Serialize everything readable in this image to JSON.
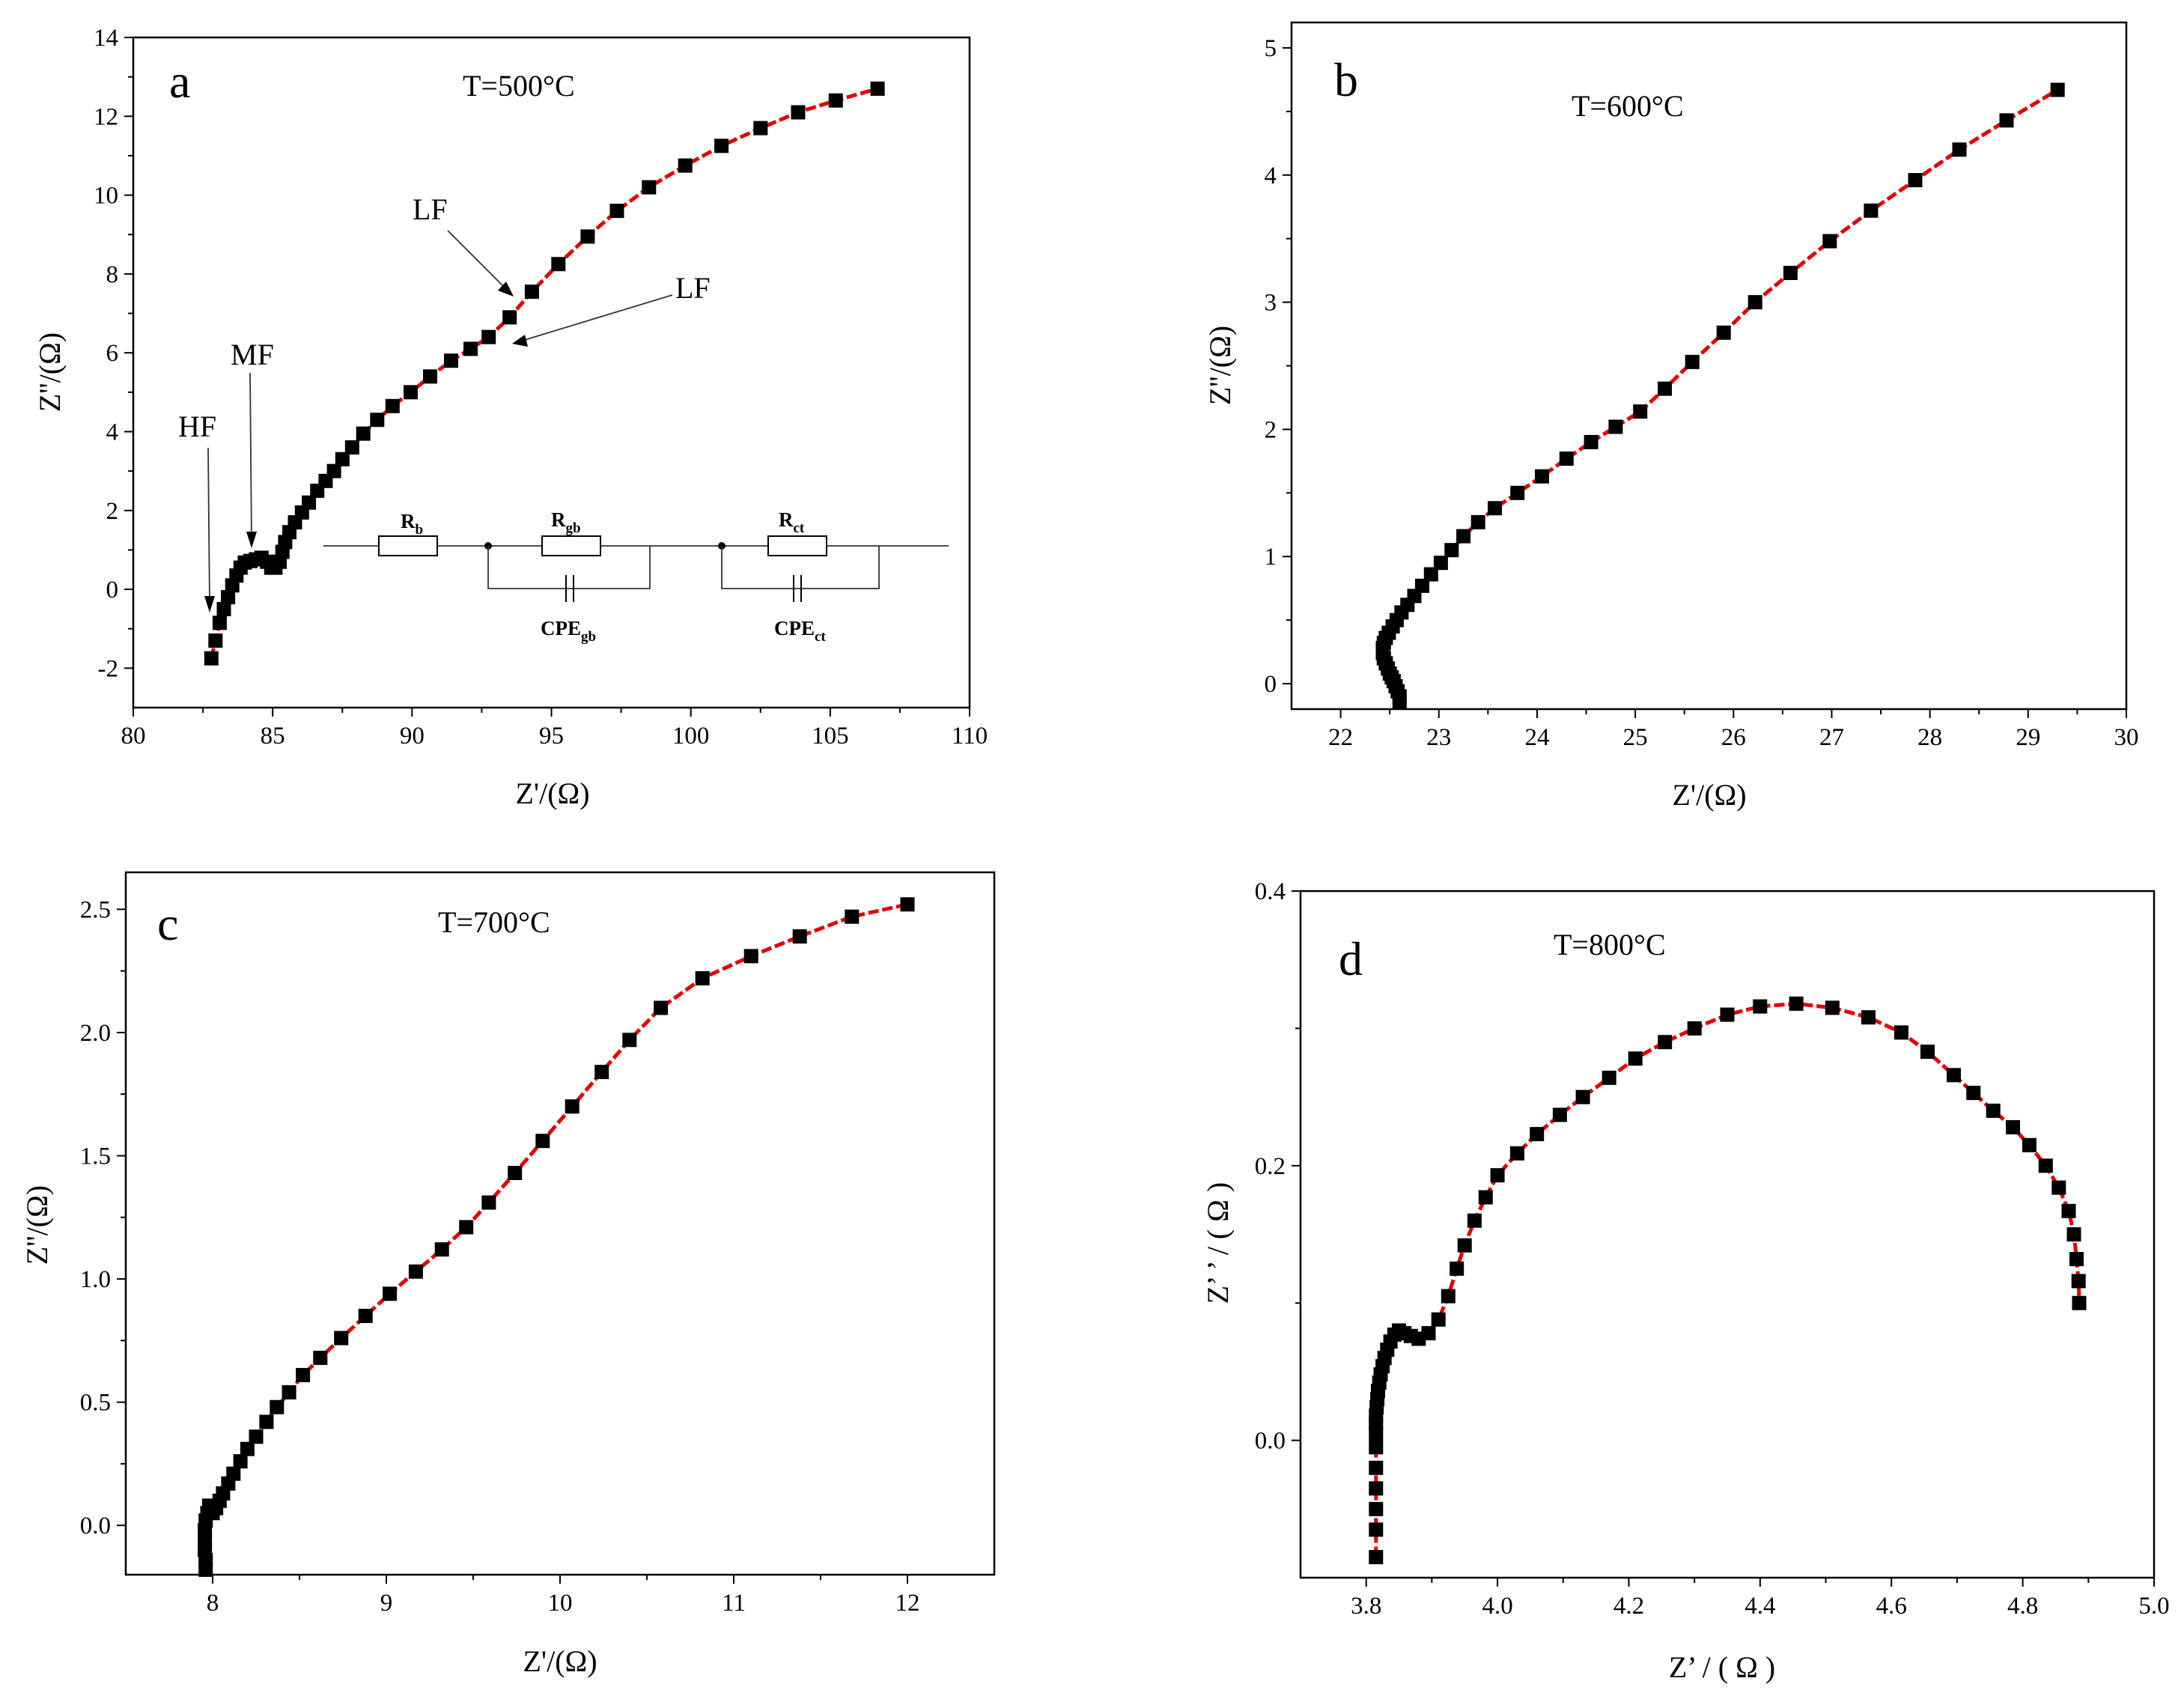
{
  "colors": {
    "marker": "#000000",
    "fit_line": "#e00000",
    "axes": "#000000"
  },
  "chart_data": [
    {
      "id": "a",
      "type": "scatter",
      "panel_label": "a",
      "title": "T=500°C",
      "xlabel": "Z'/(Ω)",
      "ylabel": "Z''/(Ω)",
      "xlim": [
        80,
        110
      ],
      "ylim": [
        -3,
        14
      ],
      "xticks": [
        80,
        85,
        90,
        95,
        100,
        105,
        110
      ],
      "yticks": [
        -2,
        0,
        2,
        4,
        6,
        8,
        10,
        12,
        14
      ],
      "x": [
        82.8,
        82.95,
        83.1,
        83.25,
        83.4,
        83.55,
        83.7,
        83.85,
        84.0,
        84.2,
        84.4,
        84.6,
        84.8,
        84.95,
        85.1,
        85.25,
        85.35,
        85.45,
        85.6,
        85.8,
        86.05,
        86.3,
        86.6,
        86.9,
        87.2,
        87.5,
        87.85,
        88.25,
        88.75,
        89.3,
        89.95,
        90.65,
        91.4,
        92.1,
        92.75,
        93.5,
        94.3,
        95.25,
        96.3,
        97.35,
        98.5,
        99.8,
        101.1,
        102.5,
        103.85,
        105.2,
        106.7
      ],
      "y": [
        -1.75,
        -1.3,
        -0.85,
        -0.5,
        -0.2,
        0.1,
        0.35,
        0.55,
        0.68,
        0.72,
        0.76,
        0.8,
        0.7,
        0.55,
        0.55,
        0.7,
        0.95,
        1.2,
        1.45,
        1.7,
        1.95,
        2.2,
        2.5,
        2.75,
        3.0,
        3.3,
        3.6,
        3.95,
        4.3,
        4.65,
        5.0,
        5.4,
        5.8,
        6.1,
        6.4,
        6.9,
        7.55,
        8.25,
        8.95,
        9.6,
        10.2,
        10.75,
        11.25,
        11.7,
        12.1,
        12.4,
        12.7
      ],
      "annotations": [
        "HF",
        "MF",
        "LF",
        "LF"
      ],
      "circuit": {
        "elements": [
          "R",
          "R",
          "CPE",
          "R",
          "CPE"
        ],
        "subscripts": [
          "b",
          "gb",
          "gb",
          "ct",
          "ct"
        ]
      }
    },
    {
      "id": "b",
      "type": "scatter",
      "panel_label": "b",
      "title": "T=600°C",
      "xlabel": "Z'/(Ω)",
      "ylabel": "Z''/(Ω)",
      "xlim": [
        21.5,
        30
      ],
      "ylim": [
        -0.2,
        5.2
      ],
      "xticks": [
        22,
        23,
        24,
        25,
        26,
        27,
        28,
        29,
        30
      ],
      "yticks": [
        0,
        1,
        2,
        3,
        4,
        5
      ],
      "x": [
        22.6,
        22.6,
        22.58,
        22.56,
        22.54,
        22.52,
        22.5,
        22.48,
        22.46,
        22.44,
        22.43,
        22.43,
        22.44,
        22.46,
        22.49,
        22.53,
        22.57,
        22.62,
        22.68,
        22.75,
        22.83,
        22.92,
        23.02,
        23.13,
        23.25,
        23.4,
        23.57,
        23.8,
        24.05,
        24.3,
        24.55,
        24.8,
        25.05,
        25.3,
        25.58,
        25.9,
        26.22,
        26.58,
        26.98,
        27.4,
        27.85,
        28.3,
        28.78,
        29.3
      ],
      "y": [
        -0.15,
        -0.1,
        -0.06,
        -0.02,
        0.02,
        0.05,
        0.08,
        0.12,
        0.16,
        0.2,
        0.24,
        0.28,
        0.32,
        0.36,
        0.4,
        0.45,
        0.5,
        0.56,
        0.62,
        0.69,
        0.77,
        0.86,
        0.95,
        1.05,
        1.16,
        1.27,
        1.38,
        1.5,
        1.63,
        1.77,
        1.9,
        2.02,
        2.14,
        2.32,
        2.53,
        2.76,
        3.0,
        3.23,
        3.48,
        3.72,
        3.96,
        4.2,
        4.43,
        4.67
      ],
      "annotations": []
    },
    {
      "id": "c",
      "type": "scatter",
      "panel_label": "c",
      "title": "T=700°C",
      "xlabel": "Z'/(Ω)",
      "ylabel": "Z''/(Ω)",
      "xlim": [
        7.5,
        12.5
      ],
      "ylim": [
        -0.2,
        2.65
      ],
      "xticks": [
        8,
        9,
        10,
        11,
        12
      ],
      "yticks": [
        0.0,
        0.5,
        1.0,
        1.5,
        2.0,
        2.5
      ],
      "x": [
        7.96,
        7.96,
        7.955,
        7.955,
        7.955,
        7.96,
        7.97,
        7.98,
        7.99,
        8.0,
        8.02,
        8.04,
        8.06,
        8.09,
        8.12,
        8.16,
        8.2,
        8.25,
        8.31,
        8.37,
        8.44,
        8.52,
        8.62,
        8.74,
        8.88,
        9.02,
        9.17,
        9.32,
        9.46,
        9.59,
        9.74,
        9.9,
        10.07,
        10.24,
        10.4,
        10.58,
        10.82,
        11.1,
        11.38,
        11.68,
        12.0
      ],
      "y": [
        -0.18,
        -0.14,
        -0.1,
        -0.06,
        -0.02,
        0.02,
        0.05,
        0.08,
        0.06,
        0.05,
        0.07,
        0.1,
        0.13,
        0.17,
        0.21,
        0.26,
        0.31,
        0.36,
        0.42,
        0.48,
        0.54,
        0.61,
        0.68,
        0.76,
        0.85,
        0.94,
        1.03,
        1.12,
        1.21,
        1.31,
        1.43,
        1.56,
        1.7,
        1.84,
        1.97,
        2.1,
        2.22,
        2.31,
        2.39,
        2.47,
        2.52
      ],
      "annotations": []
    },
    {
      "id": "d",
      "type": "scatter",
      "panel_label": "d",
      "title": "T=800°C",
      "xlabel": "Z’ / ( Ω )",
      "ylabel": "Z’ ’ / ( Ω )",
      "xlim": [
        3.7,
        5.0
      ],
      "ylim": [
        -0.1,
        0.4
      ],
      "xticks": [
        3.8,
        4.0,
        4.2,
        4.4,
        4.6,
        4.8,
        5.0
      ],
      "xtick_labels": [
        "3.8",
        "4.0",
        "4.2",
        "4.4",
        "4.6",
        "4.8",
        "5.0"
      ],
      "yticks": [
        0.0,
        0.2,
        0.4
      ],
      "ytick_labels": [
        "0.0",
        "0.2",
        "0.4"
      ],
      "x": [
        3.815,
        3.815,
        3.815,
        3.815,
        3.815,
        3.815,
        3.815,
        3.815,
        3.815,
        3.816,
        3.817,
        3.818,
        3.82,
        3.822,
        3.825,
        3.828,
        3.832,
        3.837,
        3.843,
        3.85,
        3.858,
        3.868,
        3.88,
        3.895,
        3.91,
        3.925,
        3.938,
        3.95,
        3.965,
        3.982,
        4.0,
        4.03,
        4.06,
        4.095,
        4.13,
        4.17,
        4.21,
        4.255,
        4.3,
        4.35,
        4.4,
        4.455,
        4.51,
        4.565,
        4.615,
        4.655,
        4.695,
        4.725,
        4.755,
        4.785,
        4.81,
        4.835,
        4.855,
        4.87,
        4.878,
        4.882,
        4.885,
        4.886
      ],
      "y": [
        -0.085,
        -0.065,
        -0.05,
        -0.035,
        -0.02,
        -0.005,
        0.005,
        0.012,
        0.018,
        0.024,
        0.03,
        0.036,
        0.042,
        0.048,
        0.054,
        0.06,
        0.066,
        0.072,
        0.077,
        0.08,
        0.078,
        0.076,
        0.074,
        0.078,
        0.088,
        0.105,
        0.125,
        0.142,
        0.16,
        0.177,
        0.193,
        0.209,
        0.223,
        0.237,
        0.25,
        0.264,
        0.278,
        0.29,
        0.3,
        0.31,
        0.316,
        0.318,
        0.315,
        0.308,
        0.297,
        0.283,
        0.266,
        0.253,
        0.24,
        0.228,
        0.215,
        0.2,
        0.184,
        0.167,
        0.15,
        0.132,
        0.116,
        0.1
      ],
      "annotations": []
    }
  ]
}
